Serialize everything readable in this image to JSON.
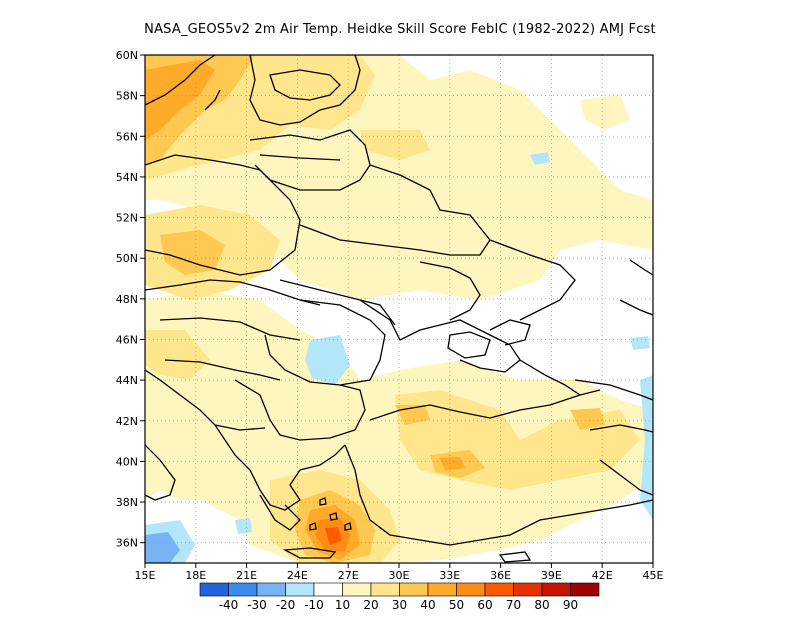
{
  "title": "NASA_GEOS5v2  2m Air Temp. Heidke Skill Score FebIC (1982-2022) AMJ Fcst",
  "map": {
    "lon_range": [
      15,
      45
    ],
    "lat_range": [
      35,
      60
    ],
    "lon_ticks": [
      "15E",
      "18E",
      "21E",
      "24E",
      "27E",
      "30E",
      "33E",
      "36E",
      "39E",
      "42E",
      "45E"
    ],
    "lat_ticks": [
      "36N",
      "38N",
      "40N",
      "42N",
      "44N",
      "46N",
      "48N",
      "50N",
      "52N",
      "54N",
      "56N",
      "58N",
      "60N"
    ],
    "grid": true
  },
  "colorbar": {
    "colors": [
      "#1e64dc",
      "#3c8cf0",
      "#78b4f5",
      "#b4e6fa",
      "#ffffff",
      "#fff5be",
      "#ffe68c",
      "#ffc850",
      "#ffaa28",
      "#ff8c14",
      "#ff5a00",
      "#e63200",
      "#c81400",
      "#a00000"
    ],
    "labels": [
      "-40",
      "-30",
      "-20",
      "-10",
      "10",
      "20",
      "30",
      "40",
      "50",
      "60",
      "70",
      "80",
      "90"
    ]
  }
}
